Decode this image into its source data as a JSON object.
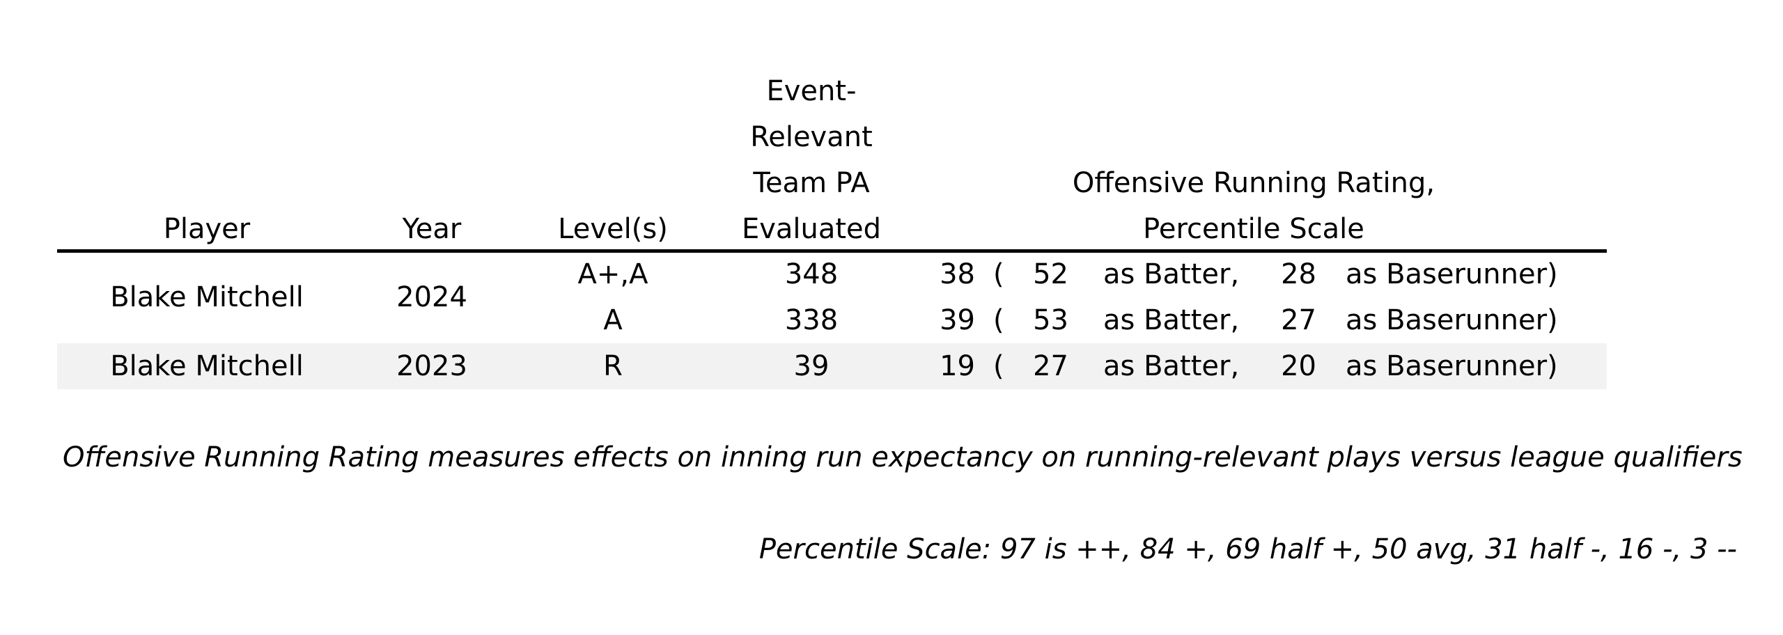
{
  "headers": {
    "player": "Player",
    "year": "Year",
    "levels": "Level(s)",
    "pa": "Event-\nRelevant\nTeam PA\nEvaluated",
    "rating": "Offensive Running Rating,\nPercentile Scale"
  },
  "rows": [
    {
      "player": "Blake Mitchell",
      "year": "2024",
      "sub": [
        {
          "level": "A+,A",
          "pa": "348",
          "overall": "38",
          "batter": "52",
          "baserunner": "28"
        },
        {
          "level": "A",
          "pa": "338",
          "overall": "39",
          "batter": "53",
          "baserunner": "27"
        }
      ]
    },
    {
      "player": "Blake Mitchell",
      "year": "2023",
      "sub": [
        {
          "level": "R",
          "pa": "39",
          "overall": "19",
          "batter": "27",
          "baserunner": "20"
        }
      ]
    }
  ],
  "labels": {
    "open_paren": "(",
    "as_batter": "as Batter,",
    "as_baserunner": "as Baserunner)"
  },
  "notes": {
    "definition": "Offensive Running Rating measures effects on inning run expectancy on running-relevant plays versus league qualifiers",
    "scale": "Percentile Scale: 97 is ++, 84 +, 69 half +, 50 avg, 31 half -, 16 -, 3 --"
  }
}
